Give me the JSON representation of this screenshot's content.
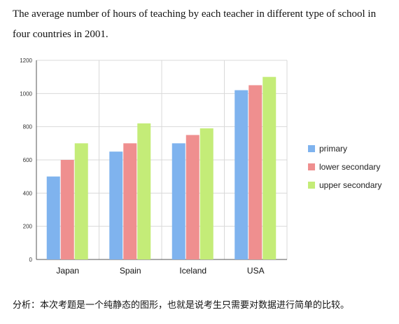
{
  "chart_data": {
    "type": "bar",
    "title": "The average number of hours of teaching by each teacher in different type of school in four countries in 2001.",
    "categories": [
      "Japan",
      "Spain",
      "Iceland",
      "USA"
    ],
    "series": [
      {
        "name": "primary",
        "values": [
          500,
          650,
          700,
          1020
        ],
        "color": "#7fb3ee"
      },
      {
        "name": "lower secondary",
        "values": [
          600,
          700,
          750,
          1050
        ],
        "color": "#ef8f8f"
      },
      {
        "name": "upper secondary",
        "values": [
          700,
          820,
          790,
          1100
        ],
        "color": "#c4ec78"
      }
    ],
    "ylim": [
      0,
      1200
    ],
    "yticks": [
      0,
      200,
      400,
      600,
      800,
      1000,
      1200
    ],
    "ytick_labels": [
      "0",
      "200",
      "400",
      "600",
      "800",
      "1000",
      "1200"
    ],
    "grid": true,
    "legend_position": "right"
  },
  "footer_note": "分析：本次考题是一个纯静态的图形，也就是说考生只需要对数据进行简单的比较。"
}
